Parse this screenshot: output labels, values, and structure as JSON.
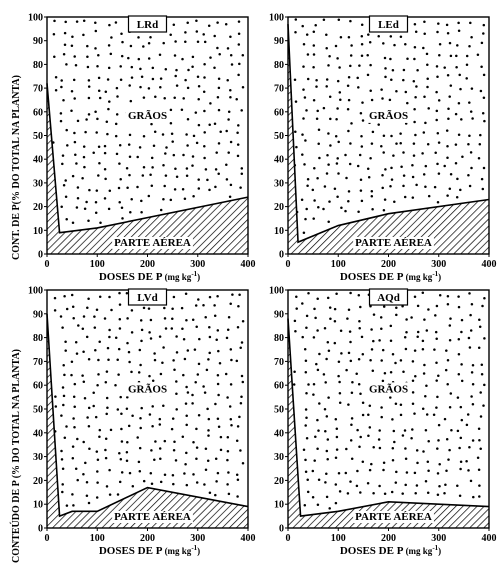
{
  "figure": {
    "ylabel_top": "CONT. DE P(% DO TOTAL NA PLANTA)",
    "ylabel_bottom": "CONTEÚDO DE P (% DO TOTAL NA PLANTA)",
    "xlabel": "DOSES DE P (mg kg-1)",
    "xlabel_main": "DOSES DE P",
    "xlabel_unit": "(mg kg",
    "xlabel_sup": "-1",
    "xlabel_close": ")"
  },
  "chart_data": [
    {
      "type": "area",
      "title": "LRd",
      "x": [
        0,
        25,
        100,
        400
      ],
      "stem_y": [
        72,
        9,
        11,
        24
      ],
      "xlim": [
        0,
        400
      ],
      "ylim": [
        0,
        100
      ],
      "xticks": [
        0,
        100,
        200,
        300,
        400
      ],
      "yticks": [
        0,
        10,
        20,
        30,
        40,
        50,
        60,
        70,
        80,
        90,
        100
      ],
      "upper_label": "GRÃOS",
      "lower_label": "PARTE AÉREA",
      "series": [
        {
          "name": "PARTE AÉREA",
          "fill": "hatched"
        },
        {
          "name": "GRÃOS",
          "fill": "dotted"
        }
      ]
    },
    {
      "type": "area",
      "title": "LEd",
      "x": [
        0,
        20,
        100,
        200,
        400
      ],
      "stem_y": [
        97,
        5,
        12,
        17,
        23
      ],
      "xlim": [
        0,
        400
      ],
      "ylim": [
        0,
        100
      ],
      "xticks": [
        0,
        100,
        200,
        300,
        400
      ],
      "yticks": [
        0,
        10,
        20,
        30,
        40,
        50,
        60,
        70,
        80,
        90,
        100
      ],
      "upper_label": "GRÃOS",
      "lower_label": "PARTE AÉREA",
      "series": [
        {
          "name": "PARTE AÉREA",
          "fill": "hatched"
        },
        {
          "name": "GRÃOS",
          "fill": "dotted"
        }
      ]
    },
    {
      "type": "area",
      "title": "LVd",
      "x": [
        0,
        25,
        50,
        100,
        200,
        400
      ],
      "stem_y": [
        90,
        5,
        7,
        7,
        17,
        9
      ],
      "xlim": [
        0,
        400
      ],
      "ylim": [
        0,
        100
      ],
      "xticks": [
        0,
        100,
        200,
        300,
        400
      ],
      "yticks": [
        0,
        10,
        20,
        30,
        40,
        50,
        60,
        70,
        80,
        90,
        100
      ],
      "upper_label": "GRÃOS",
      "lower_label": "PARTE AÉREA",
      "series": [
        {
          "name": "PARTE AÉREA",
          "fill": "hatched"
        },
        {
          "name": "GRÃOS",
          "fill": "dotted"
        }
      ]
    },
    {
      "type": "area",
      "title": "AQd",
      "x": [
        0,
        25,
        100,
        200,
        400
      ],
      "stem_y": [
        88,
        5,
        7,
        11,
        9
      ],
      "xlim": [
        0,
        400
      ],
      "ylim": [
        0,
        100
      ],
      "xticks": [
        0,
        100,
        200,
        300,
        400
      ],
      "yticks": [
        0,
        10,
        20,
        30,
        40,
        50,
        60,
        70,
        80,
        90,
        100
      ],
      "upper_label": "GRÃOS",
      "lower_label": "PARTE AÉREA",
      "series": [
        {
          "name": "PARTE AÉREA",
          "fill": "hatched"
        },
        {
          "name": "GRÃOS",
          "fill": "dotted"
        }
      ]
    }
  ]
}
